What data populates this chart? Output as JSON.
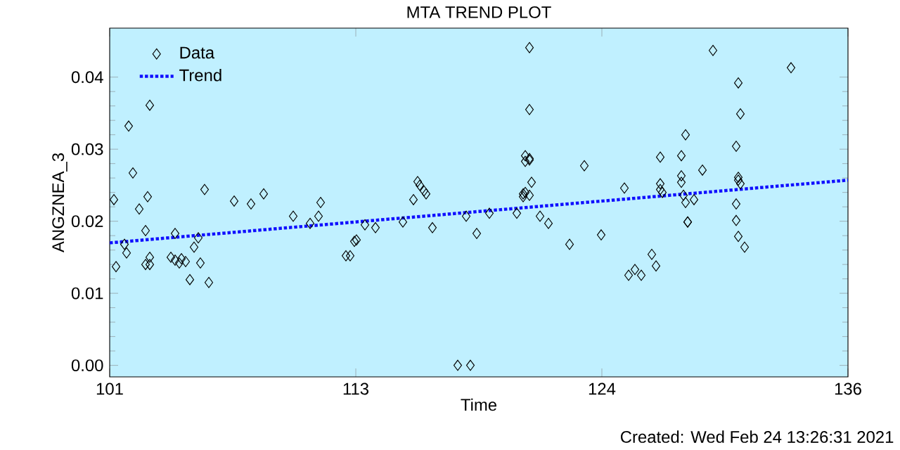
{
  "chart_data": {
    "type": "scatter",
    "title": "MTA TREND PLOT",
    "xlabel": "Time",
    "ylabel": "ANGZNEA_3",
    "annotations": [
      "Created: Wed Feb 24 13:26:31 2021"
    ],
    "xlim": [
      101,
      136
    ],
    "ylim": [
      -0.0016,
      0.0468
    ],
    "xticks": [
      101,
      {
        "value": 112.667,
        "label": "113"
      },
      {
        "value": 124.333,
        "label": "124"
      },
      136
    ],
    "yticks": [
      {
        "value": 0,
        "label": "0.00"
      },
      {
        "value": 0.01,
        "label": "0.01"
      },
      {
        "value": 0.02,
        "label": "0.02"
      },
      {
        "value": 0.03,
        "label": "0.03"
      },
      {
        "value": 0.04,
        "label": "0.04"
      }
    ],
    "grid": false,
    "legend": "top left",
    "series": [
      {
        "name": "Data",
        "color": "#000000",
        "marker": "diamond",
        "x": [
          101.2,
          101.9,
          102.9,
          102.1,
          102.8,
          102.4,
          102.7,
          104.1,
          101.7,
          101.8,
          101.3,
          102.9,
          102.7,
          102.9,
          103.9,
          104.1,
          104.3,
          104.4,
          104.6,
          105.0,
          105.2,
          105.3,
          104.8,
          105.7,
          105.5,
          106.9,
          107.7,
          108.3,
          109.7,
          110.5,
          110.9,
          111.0,
          112.6,
          112.7,
          112.2,
          112.4,
          113.1,
          113.6,
          114.9,
          116.3,
          115.4,
          115.6,
          115.7,
          115.9,
          116.0,
          117.5,
          118.1,
          117.9,
          118.4,
          119.0,
          120.3,
          120.9,
          120.9,
          120.7,
          120.9,
          120.7,
          120.9,
          121.0,
          120.6,
          120.7,
          120.9,
          120.6,
          121.4,
          121.8,
          122.8,
          123.5,
          124.3,
          125.4,
          125.6,
          125.9,
          126.2,
          126.7,
          126.9,
          127.1,
          127.1,
          127.1,
          127.2,
          128.1,
          128.3,
          128.1,
          128.1,
          128.2,
          128.3,
          128.7,
          128.4,
          128.4,
          129.1,
          129.6,
          130.8,
          130.9,
          130.7,
          130.8,
          130.8,
          130.9,
          130.7,
          130.7,
          130.8,
          131.1,
          133.3
        ],
        "values": [
          0.023,
          0.0332,
          0.0361,
          0.0267,
          0.0234,
          0.0217,
          0.0187,
          0.0183,
          0.0168,
          0.0156,
          0.0137,
          0.015,
          0.014,
          0.014,
          0.015,
          0.0146,
          0.0142,
          0.0148,
          0.0144,
          0.0164,
          0.0177,
          0.0142,
          0.0119,
          0.0115,
          0.0244,
          0.0228,
          0.0224,
          0.0238,
          0.0207,
          0.0197,
          0.0207,
          0.0226,
          0.0172,
          0.0174,
          0.0152,
          0.0152,
          0.0195,
          0.0191,
          0.0199,
          0.0191,
          0.023,
          0.0255,
          0.025,
          0.0242,
          0.0238,
          0.0,
          0.0,
          0.0207,
          0.0183,
          0.0211,
          0.0211,
          0.0441,
          0.0355,
          0.0291,
          0.0287,
          0.0283,
          0.0285,
          0.0254,
          0.0238,
          0.024,
          0.0236,
          0.0234,
          0.0207,
          0.0197,
          0.0168,
          0.0277,
          0.0181,
          0.0246,
          0.0125,
          0.0133,
          0.0125,
          0.0154,
          0.0138,
          0.0289,
          0.0252,
          0.0244,
          0.024,
          0.0291,
          0.032,
          0.0263,
          0.0254,
          0.0236,
          0.0226,
          0.023,
          0.0199,
          0.0199,
          0.0271,
          0.0437,
          0.0392,
          0.0349,
          0.0304,
          0.0261,
          0.0257,
          0.0252,
          0.0224,
          0.0201,
          0.0179,
          0.0164,
          0.0413
        ]
      },
      {
        "name": "Trend",
        "type": "line",
        "color": "#1010ff",
        "line_style": "dotted",
        "x": [
          101,
          136
        ],
        "values": [
          0.017,
          0.0257
        ]
      }
    ]
  }
}
